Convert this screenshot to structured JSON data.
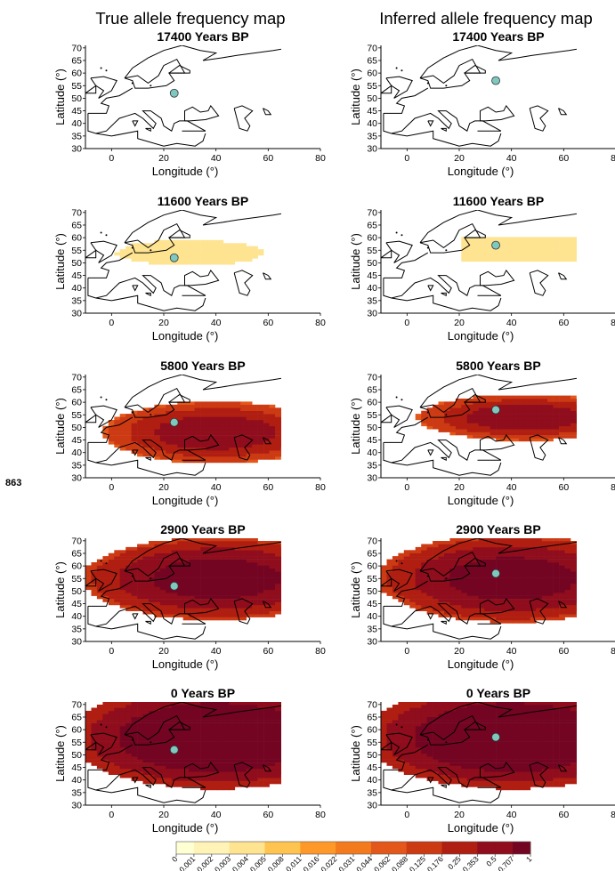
{
  "page": {
    "line_number": "863",
    "col_titles": [
      "True allele frequency map",
      "Inferred allele frequency map"
    ]
  },
  "colors": {
    "coast": "#000000",
    "sample_dot": "#7ec8c0",
    "scale": [
      "#ffffd4",
      "#fff3b8",
      "#fee391",
      "#fec44f",
      "#fe9929",
      "#f37b1d",
      "#e3571a",
      "#cc3a14",
      "#b01e12",
      "#8f0d1c",
      "#740522"
    ]
  },
  "chart_data": {
    "type": "heatmap",
    "panel_titles": [
      "17400  Years BP",
      "11600  Years BP",
      "5800  Years BP",
      "2900  Years BP",
      "0  Years BP"
    ],
    "xlabel": "Longitude (°)",
    "ylabel": "Latitude (°)",
    "xticks": [
      "0",
      "20",
      "40",
      "60",
      "80"
    ],
    "yticks": [
      "70",
      "65",
      "60",
      "55",
      "50",
      "45",
      "40",
      "35",
      "30"
    ],
    "xlim": [
      -10,
      80
    ],
    "ylim": [
      30,
      71
    ],
    "grid": false,
    "sample_locations": {
      "true": [
        24,
        52
      ],
      "inferred": [
        34,
        57
      ]
    },
    "colorbar": {
      "ticks": [
        "0",
        "0.001",
        "0.002",
        "0.003",
        "0.004",
        "0.005",
        "0.008",
        "0.011",
        "0.016",
        "0.022",
        "0.031",
        "0.044",
        "0.062",
        "0.088",
        "0.125",
        "0.176",
        "0.25",
        "0.353",
        "0.5",
        "0.707",
        "1"
      ],
      "scale": "log"
    }
  }
}
